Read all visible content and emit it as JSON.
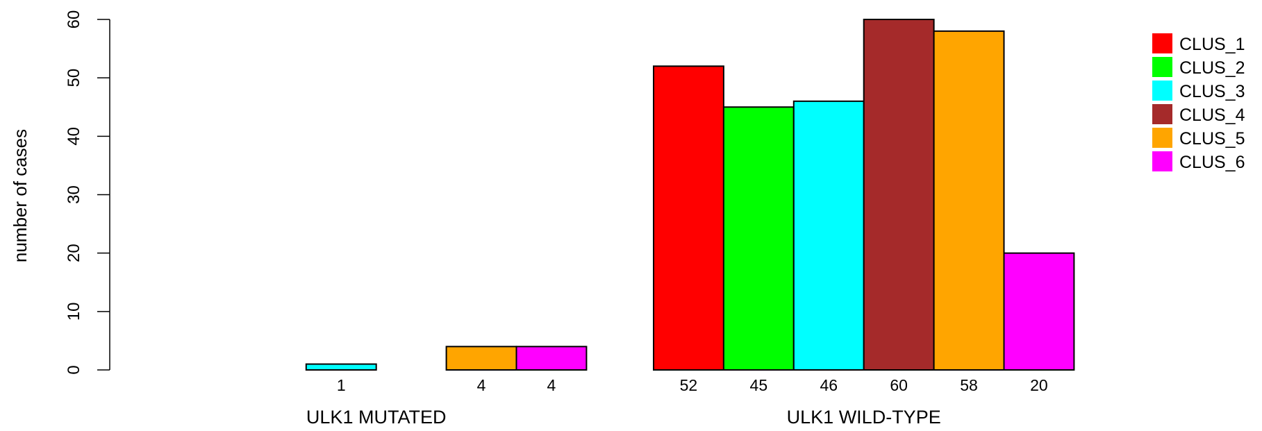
{
  "chart_data": {
    "type": "bar",
    "title": "",
    "xlabel": "",
    "ylabel": "number of cases",
    "ylim": [
      0,
      60
    ],
    "yticks": [
      0,
      10,
      20,
      30,
      40,
      50,
      60
    ],
    "grid": false,
    "legend_position": "top-right",
    "groups": [
      "ULK1 MUTATED",
      "ULK1 WILD-TYPE"
    ],
    "series": [
      {
        "name": "CLUS_1",
        "color": "#ff0000",
        "values": [
          0,
          52
        ]
      },
      {
        "name": "CLUS_2",
        "color": "#00ff00",
        "values": [
          0,
          45
        ]
      },
      {
        "name": "CLUS_3",
        "color": "#00ffff",
        "values": [
          1,
          46
        ]
      },
      {
        "name": "CLUS_4",
        "color": "#a52a2a",
        "values": [
          0,
          60
        ]
      },
      {
        "name": "CLUS_5",
        "color": "#ffa500",
        "values": [
          4,
          58
        ]
      },
      {
        "name": "CLUS_6",
        "color": "#ff00ff",
        "values": [
          4,
          20
        ]
      }
    ]
  }
}
